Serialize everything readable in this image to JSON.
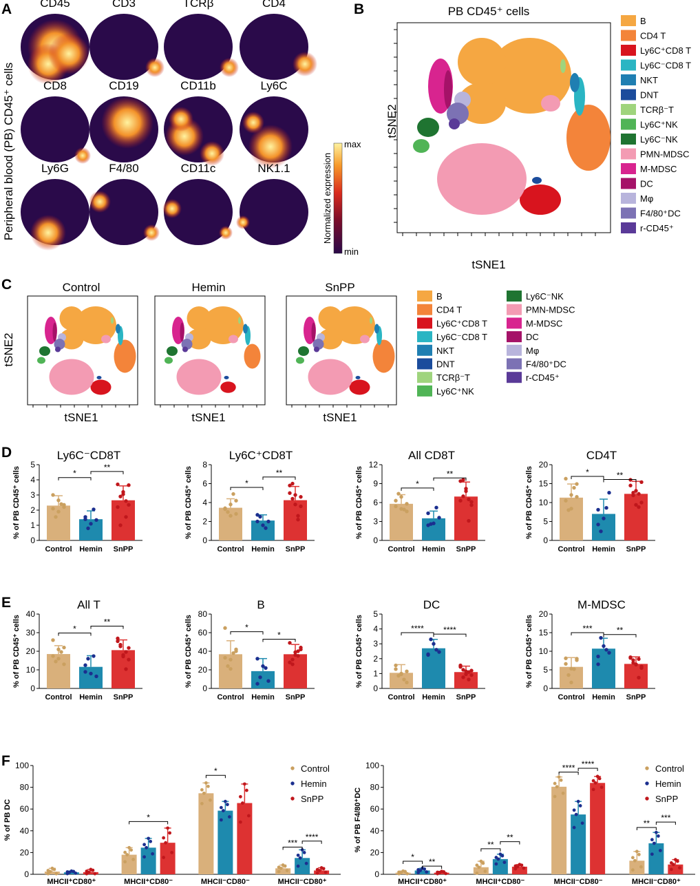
{
  "panel_labels": {
    "A": "A",
    "B": "B",
    "C": "C",
    "D": "D",
    "E": "E",
    "F": "F"
  },
  "colors": {
    "control": "#d9b07b",
    "hemin": "#1e8aae",
    "snpp": "#dd3232",
    "control_dot": "#caa060",
    "hemin_dot": "#1b2f8f",
    "snpp_dot": "#c0171c",
    "heat_low": "#2a0a4a",
    "heat_high": "#fff3a0"
  },
  "panel_a": {
    "ylabel": "Peripheral blood (PB) CD45⁺ cells",
    "markers": [
      "CD45",
      "CD3",
      "TCRβ",
      "CD4",
      "CD8",
      "CD19",
      "CD11b",
      "Ly6C",
      "Ly6G",
      "F4/80",
      "CD11c",
      "NK1.1"
    ],
    "colorbar": {
      "max": "max",
      "min": "min",
      "label": "Normalized expression"
    }
  },
  "panel_b": {
    "title": "PB CD45⁺ cells",
    "xlabel": "tSNE1",
    "ylabel": "tSNE2",
    "legend": [
      {
        "label": "B",
        "color": "#f5a742"
      },
      {
        "label": "CD4 T",
        "color": "#f3843a"
      },
      {
        "label": "Ly6C⁺CD8 T",
        "color": "#d8141e"
      },
      {
        "label": "Ly6C⁻CD8 T",
        "color": "#2ab5c3"
      },
      {
        "label": "NKT",
        "color": "#1f7fb2"
      },
      {
        "label": "DNT",
        "color": "#1b4c9c"
      },
      {
        "label": "TCRβ⁻T",
        "color": "#9fd47d"
      },
      {
        "label": "Ly6C⁺NK",
        "color": "#50b456"
      },
      {
        "label": "Ly6C⁻NK",
        "color": "#1f7431"
      },
      {
        "label": "PMN-MDSC",
        "color": "#f39bb3"
      },
      {
        "label": "M-MDSC",
        "color": "#d8248f"
      },
      {
        "label": "DC",
        "color": "#a51268"
      },
      {
        "label": "Mφ",
        "color": "#b8b4dc"
      },
      {
        "label": "F4/80⁺DC",
        "color": "#7c72b4"
      },
      {
        "label": "r-CD45⁺",
        "color": "#5a3a98"
      }
    ]
  },
  "panel_c": {
    "groups": [
      "Control",
      "Hemin",
      "SnPP"
    ],
    "xlabel": "tSNE1",
    "ylabel": "tSNE2"
  },
  "groups": [
    "Control",
    "Hemin",
    "SnPP"
  ],
  "chart_data": [
    {
      "type": "bar",
      "panel": "D",
      "title": "Ly6C⁻CD8T",
      "ylabel": "% of PB CD45⁺ cells",
      "categories": [
        "Control",
        "Hemin",
        "SnPP"
      ],
      "ylim": [
        0,
        5
      ],
      "yticks": [
        0,
        1,
        2,
        3,
        4,
        5
      ],
      "values": [
        2.3,
        1.4,
        2.65
      ],
      "errors": [
        0.65,
        0.55,
        0.95
      ],
      "points": [
        [
          2.1,
          1.9,
          2.2,
          1.55,
          2.4,
          3.0,
          2.65,
          2.35
        ],
        [
          1.55,
          1.1,
          1.35,
          0.8,
          2.05,
          1.4
        ],
        [
          3.7,
          3.2,
          2.35,
          2.9,
          1.55,
          2.2,
          3.05,
          3.65,
          1.0,
          2.6
        ]
      ],
      "brackets": [
        {
          "from": 0,
          "to": 1,
          "label": "*",
          "level": 4.15
        },
        {
          "from": 1,
          "to": 2,
          "label": "**",
          "level": 4.55
        }
      ]
    },
    {
      "type": "bar",
      "panel": "D",
      "title": "Ly6C⁺CD8T",
      "ylabel": "% of PB CD45⁺ cells",
      "categories": [
        "Control",
        "Hemin",
        "SnPP"
      ],
      "ylim": [
        0,
        8
      ],
      "yticks": [
        0,
        2,
        4,
        6,
        8
      ],
      "values": [
        3.45,
        2.1,
        4.25
      ],
      "errors": [
        0.95,
        0.6,
        1.45
      ],
      "points": [
        [
          3.3,
          2.6,
          4.2,
          3.0,
          4.9,
          3.4,
          3.8,
          2.8
        ],
        [
          2.7,
          1.6,
          2.0,
          2.5,
          1.3,
          2.0
        ],
        [
          5.8,
          4.8,
          3.6,
          4.4,
          2.2,
          5.0,
          3.8,
          4.6,
          6.0,
          2.6
        ]
      ],
      "brackets": [
        {
          "from": 0,
          "to": 1,
          "label": "*",
          "level": 5.6
        },
        {
          "from": 1,
          "to": 2,
          "label": "**",
          "level": 6.7
        }
      ]
    },
    {
      "type": "bar",
      "panel": "D",
      "title": "All CD8T",
      "ylabel": "% of PB CD45⁺ cells",
      "categories": [
        "Control",
        "Hemin",
        "SnPP"
      ],
      "ylim": [
        0,
        12
      ],
      "yticks": [
        0,
        3,
        6,
        9,
        12
      ],
      "values": [
        5.8,
        3.5,
        6.95
      ],
      "errors": [
        1.45,
        1.15,
        2.3
      ],
      "points": [
        [
          5.4,
          6.9,
          4.6,
          7.4,
          4.9,
          6.3,
          5.0,
          5.8
        ],
        [
          4.3,
          2.7,
          3.6,
          2.6,
          5.2,
          2.4
        ],
        [
          9.4,
          8.2,
          6.1,
          7.0,
          3.1,
          6.3,
          7.8,
          5.6,
          9.6,
          6.5
        ]
      ],
      "brackets": [
        {
          "from": 0,
          "to": 1,
          "label": "*",
          "level": 8.3
        },
        {
          "from": 1,
          "to": 2,
          "label": "**",
          "level": 9.9
        }
      ]
    },
    {
      "type": "bar",
      "panel": "D",
      "title": "CD4T",
      "ylabel": "% of PB CD45⁺ cells",
      "categories": [
        "Control",
        "Hemin",
        "SnPP"
      ],
      "ylim": [
        0,
        20
      ],
      "yticks": [
        0,
        5,
        10,
        15,
        20
      ],
      "values": [
        11.3,
        7.0,
        12.3
      ],
      "errors": [
        3.6,
        3.9,
        3.3
      ],
      "points": [
        [
          16.3,
          8.4,
          11.5,
          8.0,
          13.9,
          10.5,
          12.0,
          14.9
        ],
        [
          4.2,
          5.8,
          12.6,
          2.4,
          8.6,
          8.1
        ],
        [
          16.0,
          13.1,
          10.0,
          12.6,
          8.8,
          14.5,
          9.4,
          15.4,
          11.9,
          12.3
        ]
      ],
      "brackets": [
        {
          "from": 0,
          "to": 1,
          "label": "*",
          "level": 16.9
        },
        {
          "from": 1,
          "to": 2,
          "label": "**",
          "level": 16.1
        }
      ]
    },
    {
      "type": "bar",
      "panel": "E",
      "title": "All T",
      "ylabel": "% of PB CD45⁺ cells",
      "categories": [
        "Control",
        "Hemin",
        "SnPP"
      ],
      "ylim": [
        0,
        40
      ],
      "yticks": [
        0,
        10,
        20,
        30,
        40
      ],
      "values": [
        18.5,
        11.6,
        20.6
      ],
      "errors": [
        4.5,
        6.0,
        5.5
      ],
      "points": [
        [
          26.0,
          16.0,
          22.0,
          14.5,
          19.6,
          17.4,
          21.0,
          13.0
        ],
        [
          12.5,
          8.0,
          6.5,
          16.0,
          17.4,
          8.9
        ],
        [
          25.4,
          18.0,
          15.5,
          22.6,
          10.4,
          26.9,
          17.2,
          21.8,
          23.5,
          19.6
        ]
      ],
      "brackets": [
        {
          "from": 0,
          "to": 1,
          "label": "*",
          "level": 29.8
        },
        {
          "from": 1,
          "to": 2,
          "label": "**",
          "level": 33.5
        }
      ]
    },
    {
      "type": "bar",
      "panel": "E",
      "title": "B",
      "ylabel": "% of PB CD45⁺ cells",
      "categories": [
        "Control",
        "Hemin",
        "SnPP"
      ],
      "ylim": [
        0,
        80
      ],
      "yticks": [
        0,
        20,
        40,
        60,
        80
      ],
      "values": [
        36.8,
        18.6,
        36.8
      ],
      "errors": [
        14.5,
        13.5,
        10.5
      ],
      "points": [
        [
          65.0,
          31.0,
          42.0,
          24.0,
          38.0,
          33.0,
          21.0,
          40.0
        ],
        [
          32.0,
          24.0,
          8.0,
          12.0,
          22.0,
          5.0
        ],
        [
          49.0,
          39.0,
          42.0,
          26.0,
          35.0,
          28.0,
          36.0,
          44.0,
          31.0,
          40.0
        ]
      ],
      "brackets": [
        {
          "from": 0,
          "to": 1,
          "label": "*",
          "level": 61.0
        },
        {
          "from": 1,
          "to": 2,
          "label": "*",
          "level": 53.0
        }
      ]
    },
    {
      "type": "bar",
      "panel": "E",
      "title": "DC",
      "ylabel": "% of PB CD45⁺ cells",
      "categories": [
        "Control",
        "Hemin",
        "SnPP"
      ],
      "ylim": [
        0,
        5
      ],
      "yticks": [
        0,
        1,
        2,
        3,
        4,
        5
      ],
      "values": [
        1.05,
        2.7,
        1.1
      ],
      "errors": [
        0.55,
        0.6,
        0.4
      ],
      "points": [
        [
          1.55,
          1.0,
          1.15,
          0.85,
          0.6,
          1.3,
          0.95,
          0.4
        ],
        [
          2.25,
          3.0,
          2.45,
          3.3,
          2.6,
          2.3
        ],
        [
          1.45,
          1.15,
          0.9,
          1.25,
          0.6,
          1.55,
          0.95,
          1.2,
          0.75,
          1.1
        ]
      ],
      "brackets": [
        {
          "from": 0,
          "to": 1,
          "label": "****",
          "level": 3.75
        },
        {
          "from": 1,
          "to": 2,
          "label": "****",
          "level": 3.65
        }
      ]
    },
    {
      "type": "bar",
      "panel": "E",
      "title": "M-MDSC",
      "ylabel": "% of PB CD45⁺ cells",
      "categories": [
        "Control",
        "Hemin",
        "SnPP"
      ],
      "ylim": [
        0,
        20
      ],
      "yticks": [
        0,
        5,
        10,
        15,
        20
      ],
      "values": [
        5.8,
        10.7,
        6.6
      ],
      "errors": [
        2.5,
        2.8,
        1.9
      ],
      "points": [
        [
          8.1,
          5.3,
          7.6,
          3.6,
          5.2,
          6.6,
          1.6,
          8.0
        ],
        [
          8.6,
          11.4,
          9.6,
          13.6,
          10.4,
          6.5
        ],
        [
          8.4,
          6.4,
          5.5,
          7.6,
          2.9,
          8.2,
          6.5,
          5.9,
          6.9,
          7.9
        ]
      ],
      "brackets": [
        {
          "from": 0,
          "to": 1,
          "label": "***",
          "level": 15.0
        },
        {
          "from": 1,
          "to": 2,
          "label": "**",
          "level": 14.5
        }
      ]
    },
    {
      "type": "grouped-bar",
      "panel": "F",
      "ylabel": "% of PB DC",
      "categories": [
        "MHCII⁺CD80⁺",
        "MHCII⁺CD80⁻",
        "MHCII⁻CD80⁻",
        "MHCII⁻CD80⁺"
      ],
      "ylim": [
        0,
        100
      ],
      "yticks": [
        0,
        20,
        40,
        60,
        80,
        100
      ],
      "series": [
        {
          "name": "Control",
          "values": [
            2.5,
            18.0,
            74.5,
            5.5
          ],
          "errors": [
            3.0,
            6.5,
            9.5,
            3.0
          ]
        },
        {
          "name": "Hemin",
          "values": [
            1.8,
            24.5,
            58.5,
            15.0
          ],
          "errors": [
            1.2,
            8.5,
            8.5,
            7.5
          ]
        },
        {
          "name": "SnPP",
          "values": [
            2.0,
            29.0,
            65.5,
            3.5
          ],
          "errors": [
            2.5,
            13.5,
            17.5,
            2.5
          ]
        }
      ],
      "brackets": [
        {
          "cat": 1,
          "from": 0,
          "to": 2,
          "label": "*",
          "level": 48.5
        },
        {
          "cat": 2,
          "from": 0,
          "to": 1,
          "label": "*",
          "level": 91.0
        },
        {
          "cat": 3,
          "from": 0,
          "to": 1,
          "label": "***",
          "level": 25.0
        },
        {
          "cat": 3,
          "from": 1,
          "to": 2,
          "label": "****",
          "level": 30.5
        }
      ],
      "legend": [
        "Control",
        "Hemin",
        "SnPP"
      ]
    },
    {
      "type": "grouped-bar",
      "panel": "F",
      "ylabel": "% of PB F4/80⁺DC",
      "categories": [
        "MHCII⁺CD80⁺",
        "MHCII⁺CD80⁻",
        "MHCII⁻CD80⁻",
        "MHCII⁻CD80⁺"
      ],
      "ylim": [
        0,
        100
      ],
      "yticks": [
        0,
        20,
        40,
        60,
        80,
        100
      ],
      "series": [
        {
          "name": "Control",
          "values": [
            1.5,
            6.5,
            80.5,
            12.5
          ],
          "errors": [
            1.5,
            5.5,
            9.0,
            8.5
          ]
        },
        {
          "name": "Hemin",
          "values": [
            3.5,
            14.0,
            55.0,
            28.5
          ],
          "errors": [
            2.0,
            4.5,
            12.0,
            10.0
          ]
        },
        {
          "name": "SnPP",
          "values": [
            1.5,
            7.0,
            84.0,
            9.0
          ],
          "errors": [
            1.2,
            2.0,
            6.0,
            4.5
          ]
        }
      ],
      "brackets": [
        {
          "cat": 0,
          "from": 0,
          "to": 1,
          "label": "*",
          "level": 12.0
        },
        {
          "cat": 0,
          "from": 1,
          "to": 2,
          "label": "**",
          "level": 7.5
        },
        {
          "cat": 1,
          "from": 0,
          "to": 1,
          "label": "**",
          "level": 23.5
        },
        {
          "cat": 1,
          "from": 1,
          "to": 2,
          "label": "**",
          "level": 30.0
        },
        {
          "cat": 2,
          "from": 0,
          "to": 1,
          "label": "****",
          "level": 94.0
        },
        {
          "cat": 2,
          "from": 1,
          "to": 2,
          "label": "****",
          "level": 97.5
        },
        {
          "cat": 3,
          "from": 0,
          "to": 1,
          "label": "**",
          "level": 43.0
        },
        {
          "cat": 3,
          "from": 1,
          "to": 2,
          "label": "***",
          "level": 48.0
        }
      ],
      "legend": [
        "Control",
        "Hemin",
        "SnPP"
      ]
    }
  ]
}
